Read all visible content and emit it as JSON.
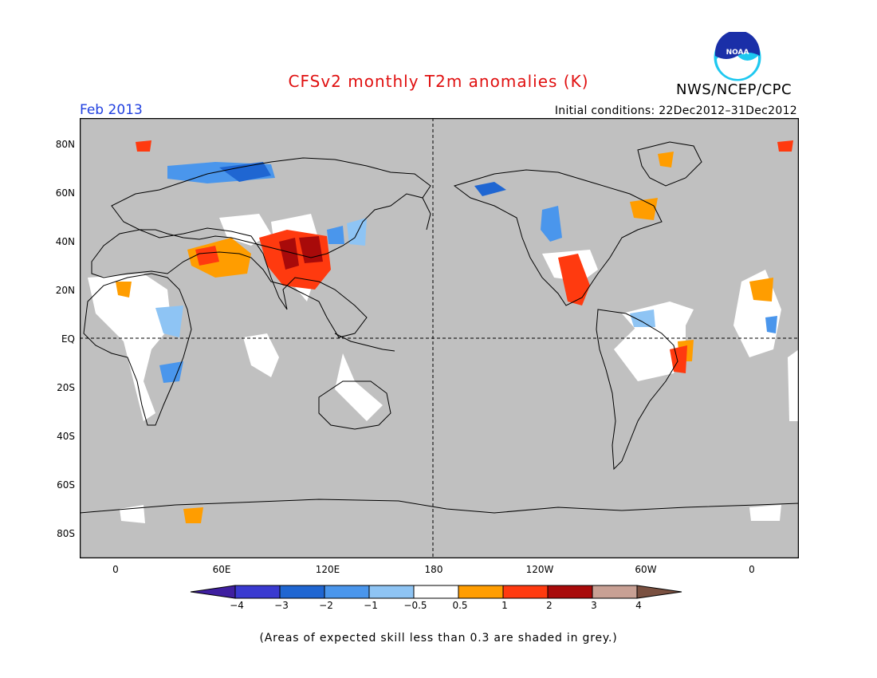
{
  "header": {
    "title": "CFSv2 monthly T2m anomalies (K)",
    "agency": "NWS/NCEP/CPC",
    "logo_text": "NOAA",
    "month": "Feb 2013",
    "initial_conditions": "Initial conditions: 22Dec2012–31Dec2012"
  },
  "axes": {
    "lat_labels": [
      "80N",
      "60N",
      "40N",
      "20N",
      "EQ",
      "20S",
      "40S",
      "60S",
      "80S"
    ],
    "lon_labels": [
      "0",
      "60E",
      "120E",
      "180",
      "120W",
      "60W",
      "0"
    ]
  },
  "colorbar": {
    "labels": [
      "−4",
      "−3",
      "−2",
      "−1",
      "−0.5",
      "0.5",
      "1",
      "2",
      "3",
      "4"
    ],
    "colors": [
      "#3f1fa0",
      "#3a3ad0",
      "#1f66d2",
      "#4a96ec",
      "#8ec4f4",
      "#ffffff",
      "#ff9d00",
      "#ff3a0f",
      "#a80a0a",
      "#c8a094",
      "#7a5040"
    ]
  },
  "footnote": "(Areas of expected skill less than 0.3 are shaded in grey.)",
  "colors": {
    "map_background": "#c0c0c0",
    "title": "#e01010",
    "month": "#2040e0"
  }
}
